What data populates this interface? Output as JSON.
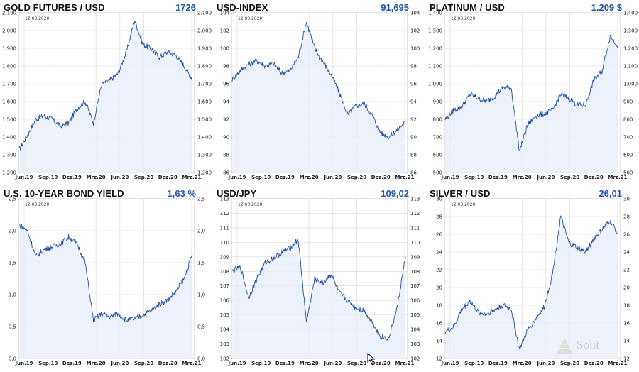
{
  "chart_data": [
    {
      "type": "line",
      "title": "GOLD FUTURES / USD",
      "current_value": "1726",
      "date_label": "12.03.2020",
      "x_ticks": [
        "Jun.19",
        "Sep.19",
        "Dez.19",
        "Mrz.20",
        "Jun.20",
        "Sep.20",
        "Dez.20",
        "Mrz.21"
      ],
      "y_ticks": [
        "1.200",
        "1.300",
        "1.400",
        "1.500",
        "1.600",
        "1.700",
        "1.800",
        "1.900",
        "2.000",
        "2.100"
      ],
      "ylim": [
        1200,
        2100
      ],
      "x": [
        "Jun.19",
        "Jul.19",
        "Aug.19",
        "Sep.19",
        "Okt.19",
        "Nov.19",
        "Dez.19",
        "Jan.20",
        "Feb.20",
        "Mrz.20",
        "Apr.20",
        "Mai.20",
        "Jun.20",
        "Jul.20",
        "Aug.20",
        "Sep.20",
        "Okt.20",
        "Nov.20",
        "Dez.20",
        "Jan.21",
        "Feb.21",
        "Mrz.21"
      ],
      "values": [
        1330,
        1410,
        1500,
        1520,
        1500,
        1460,
        1480,
        1560,
        1600,
        1480,
        1700,
        1720,
        1760,
        1880,
        2060,
        1920,
        1900,
        1850,
        1880,
        1860,
        1800,
        1726
      ]
    },
    {
      "type": "line",
      "title": "USD-INDEX",
      "current_value": "91,695",
      "date_label": "12.03.2020",
      "x_ticks": [
        "Jun.19",
        "Sep.19",
        "Dez.19",
        "Mrz.20",
        "Jun.20",
        "Sep.20",
        "Dez.20",
        "Mrz.21"
      ],
      "y_ticks": [
        "86",
        "88",
        "90",
        "92",
        "94",
        "96",
        "98",
        "100",
        "102",
        "104"
      ],
      "ylim": [
        86,
        104
      ],
      "x": [
        "Jun.19",
        "Jul.19",
        "Aug.19",
        "Sep.19",
        "Okt.19",
        "Nov.19",
        "Dez.19",
        "Jan.20",
        "Feb.20",
        "Mrz.20",
        "Apr.20",
        "Mai.20",
        "Jun.20",
        "Jul.20",
        "Aug.20",
        "Sep.20",
        "Okt.20",
        "Nov.20",
        "Dez.20",
        "Jan.21",
        "Feb.21",
        "Mrz.21"
      ],
      "values": [
        96.5,
        97.5,
        98.2,
        98.6,
        98.0,
        98.3,
        97.2,
        97.5,
        99.0,
        103.0,
        100.0,
        98.5,
        97.0,
        95.0,
        92.5,
        93.5,
        93.8,
        92.4,
        90.5,
        90.0,
        90.8,
        91.7
      ]
    },
    {
      "type": "line",
      "title": "PLATINUM / USD",
      "current_value": "1.209 $",
      "date_label": "12.03.2020",
      "x_ticks": [
        "Jun.19",
        "Sep.19",
        "Dez.19",
        "Mrz.20",
        "Jun.20",
        "Sep.20",
        "Dez.20",
        "Mrz.21"
      ],
      "y_ticks": [
        "500",
        "600",
        "700",
        "800",
        "900",
        "1.000",
        "1.100",
        "1.200",
        "1.300",
        "1.400"
      ],
      "ylim": [
        500,
        1400
      ],
      "x": [
        "Jun.19",
        "Jul.19",
        "Aug.19",
        "Sep.19",
        "Okt.19",
        "Nov.19",
        "Dez.19",
        "Jan.20",
        "Feb.20",
        "Mrz.20",
        "Apr.20",
        "Mai.20",
        "Jun.20",
        "Jul.20",
        "Aug.20",
        "Sep.20",
        "Okt.20",
        "Nov.20",
        "Dez.20",
        "Jan.21",
        "Feb.21",
        "Mrz.21"
      ],
      "values": [
        800,
        850,
        870,
        940,
        920,
        900,
        930,
        980,
        980,
        620,
        770,
        820,
        830,
        850,
        940,
        920,
        880,
        880,
        1020,
        1070,
        1270,
        1209
      ]
    },
    {
      "type": "line",
      "title": "U.S. 10-YEAR BOND YIELD",
      "current_value": "1,63 %",
      "date_label": "12.03.2020",
      "x_ticks": [
        "Jun.19",
        "Sep.19",
        "Dez.19",
        "Mrz.20",
        "Jun.20",
        "Sep.20",
        "Dez.20",
        "Mrz.21"
      ],
      "y_ticks": [
        "0,0",
        "0,5",
        "1,0",
        "1,5",
        "2,0",
        "2,5"
      ],
      "ylim": [
        0,
        2.5
      ],
      "x": [
        "Jun.19",
        "Jul.19",
        "Aug.19",
        "Sep.19",
        "Okt.19",
        "Nov.19",
        "Dez.19",
        "Jan.20",
        "Feb.20",
        "Mrz.20",
        "Apr.20",
        "Mai.20",
        "Jun.20",
        "Jul.20",
        "Aug.20",
        "Sep.20",
        "Okt.20",
        "Nov.20",
        "Dez.20",
        "Jan.21",
        "Feb.21",
        "Mrz.21"
      ],
      "values": [
        2.1,
        2.0,
        1.6,
        1.7,
        1.75,
        1.8,
        1.9,
        1.8,
        1.5,
        0.6,
        0.7,
        0.65,
        0.7,
        0.6,
        0.62,
        0.68,
        0.75,
        0.85,
        0.92,
        1.05,
        1.25,
        1.63
      ]
    },
    {
      "type": "line",
      "title": "USD/JPY",
      "current_value": "109,02",
      "date_label": "12.03.2020",
      "x_ticks": [
        "Jun.19",
        "Sep.19",
        "Dez.19",
        "Mrz.20",
        "Jun.20",
        "Sep.20",
        "Dez.20",
        "Mrz.21"
      ],
      "y_ticks": [
        "102",
        "103",
        "104",
        "105",
        "106",
        "107",
        "108",
        "109",
        "110",
        "111",
        "112",
        "113"
      ],
      "ylim": [
        102,
        113
      ],
      "x": [
        "Jun.19",
        "Jul.19",
        "Aug.19",
        "Sep.19",
        "Okt.19",
        "Nov.19",
        "Dez.19",
        "Jan.20",
        "Feb.20",
        "Mrz.20",
        "Apr.20",
        "Mai.20",
        "Jun.20",
        "Jul.20",
        "Aug.20",
        "Sep.20",
        "Okt.20",
        "Nov.20",
        "Dez.20",
        "Jan.21",
        "Feb.21",
        "Mrz.21"
      ],
      "values": [
        108.0,
        108.3,
        106.2,
        107.5,
        108.6,
        108.9,
        109.3,
        109.6,
        110.2,
        104.5,
        107.5,
        107.2,
        107.8,
        106.5,
        106.0,
        105.5,
        105.3,
        104.5,
        103.5,
        103.4,
        105.5,
        109.0
      ]
    },
    {
      "type": "line",
      "title": "SILVER / USD",
      "current_value": "26,01",
      "date_label": "12.03.2020",
      "x_ticks": [
        "Jun.19",
        "Sep.19",
        "Dez.19",
        "Mrz.20",
        "Jun.20",
        "Sep.20",
        "Dez.20",
        "Mrz.21"
      ],
      "y_ticks": [
        "12",
        "14",
        "16",
        "18",
        "20",
        "22",
        "24",
        "26",
        "28",
        "30"
      ],
      "ylim": [
        12,
        30
      ],
      "x": [
        "Jun.19",
        "Jul.19",
        "Aug.19",
        "Sep.19",
        "Okt.19",
        "Nov.19",
        "Dez.19",
        "Jan.20",
        "Feb.20",
        "Mrz.20",
        "Apr.20",
        "Mai.20",
        "Jun.20",
        "Jul.20",
        "Aug.20",
        "Sep.20",
        "Okt.20",
        "Nov.20",
        "Dez.20",
        "Jan.21",
        "Feb.21",
        "Mrz.21"
      ],
      "values": [
        15.0,
        15.5,
        17.5,
        18.5,
        17.2,
        17.0,
        17.5,
        18.0,
        17.6,
        13.0,
        15.2,
        16.5,
        17.8,
        21.5,
        28.0,
        25.0,
        24.5,
        24.0,
        25.5,
        26.5,
        27.5,
        26.0
      ]
    }
  ],
  "watermark": {
    "text": "Solit"
  },
  "colors": {
    "line": "#1f4fa3",
    "fill": "#e8edf7",
    "title_value": "#2255a5",
    "grid": "#d7d7d7"
  }
}
